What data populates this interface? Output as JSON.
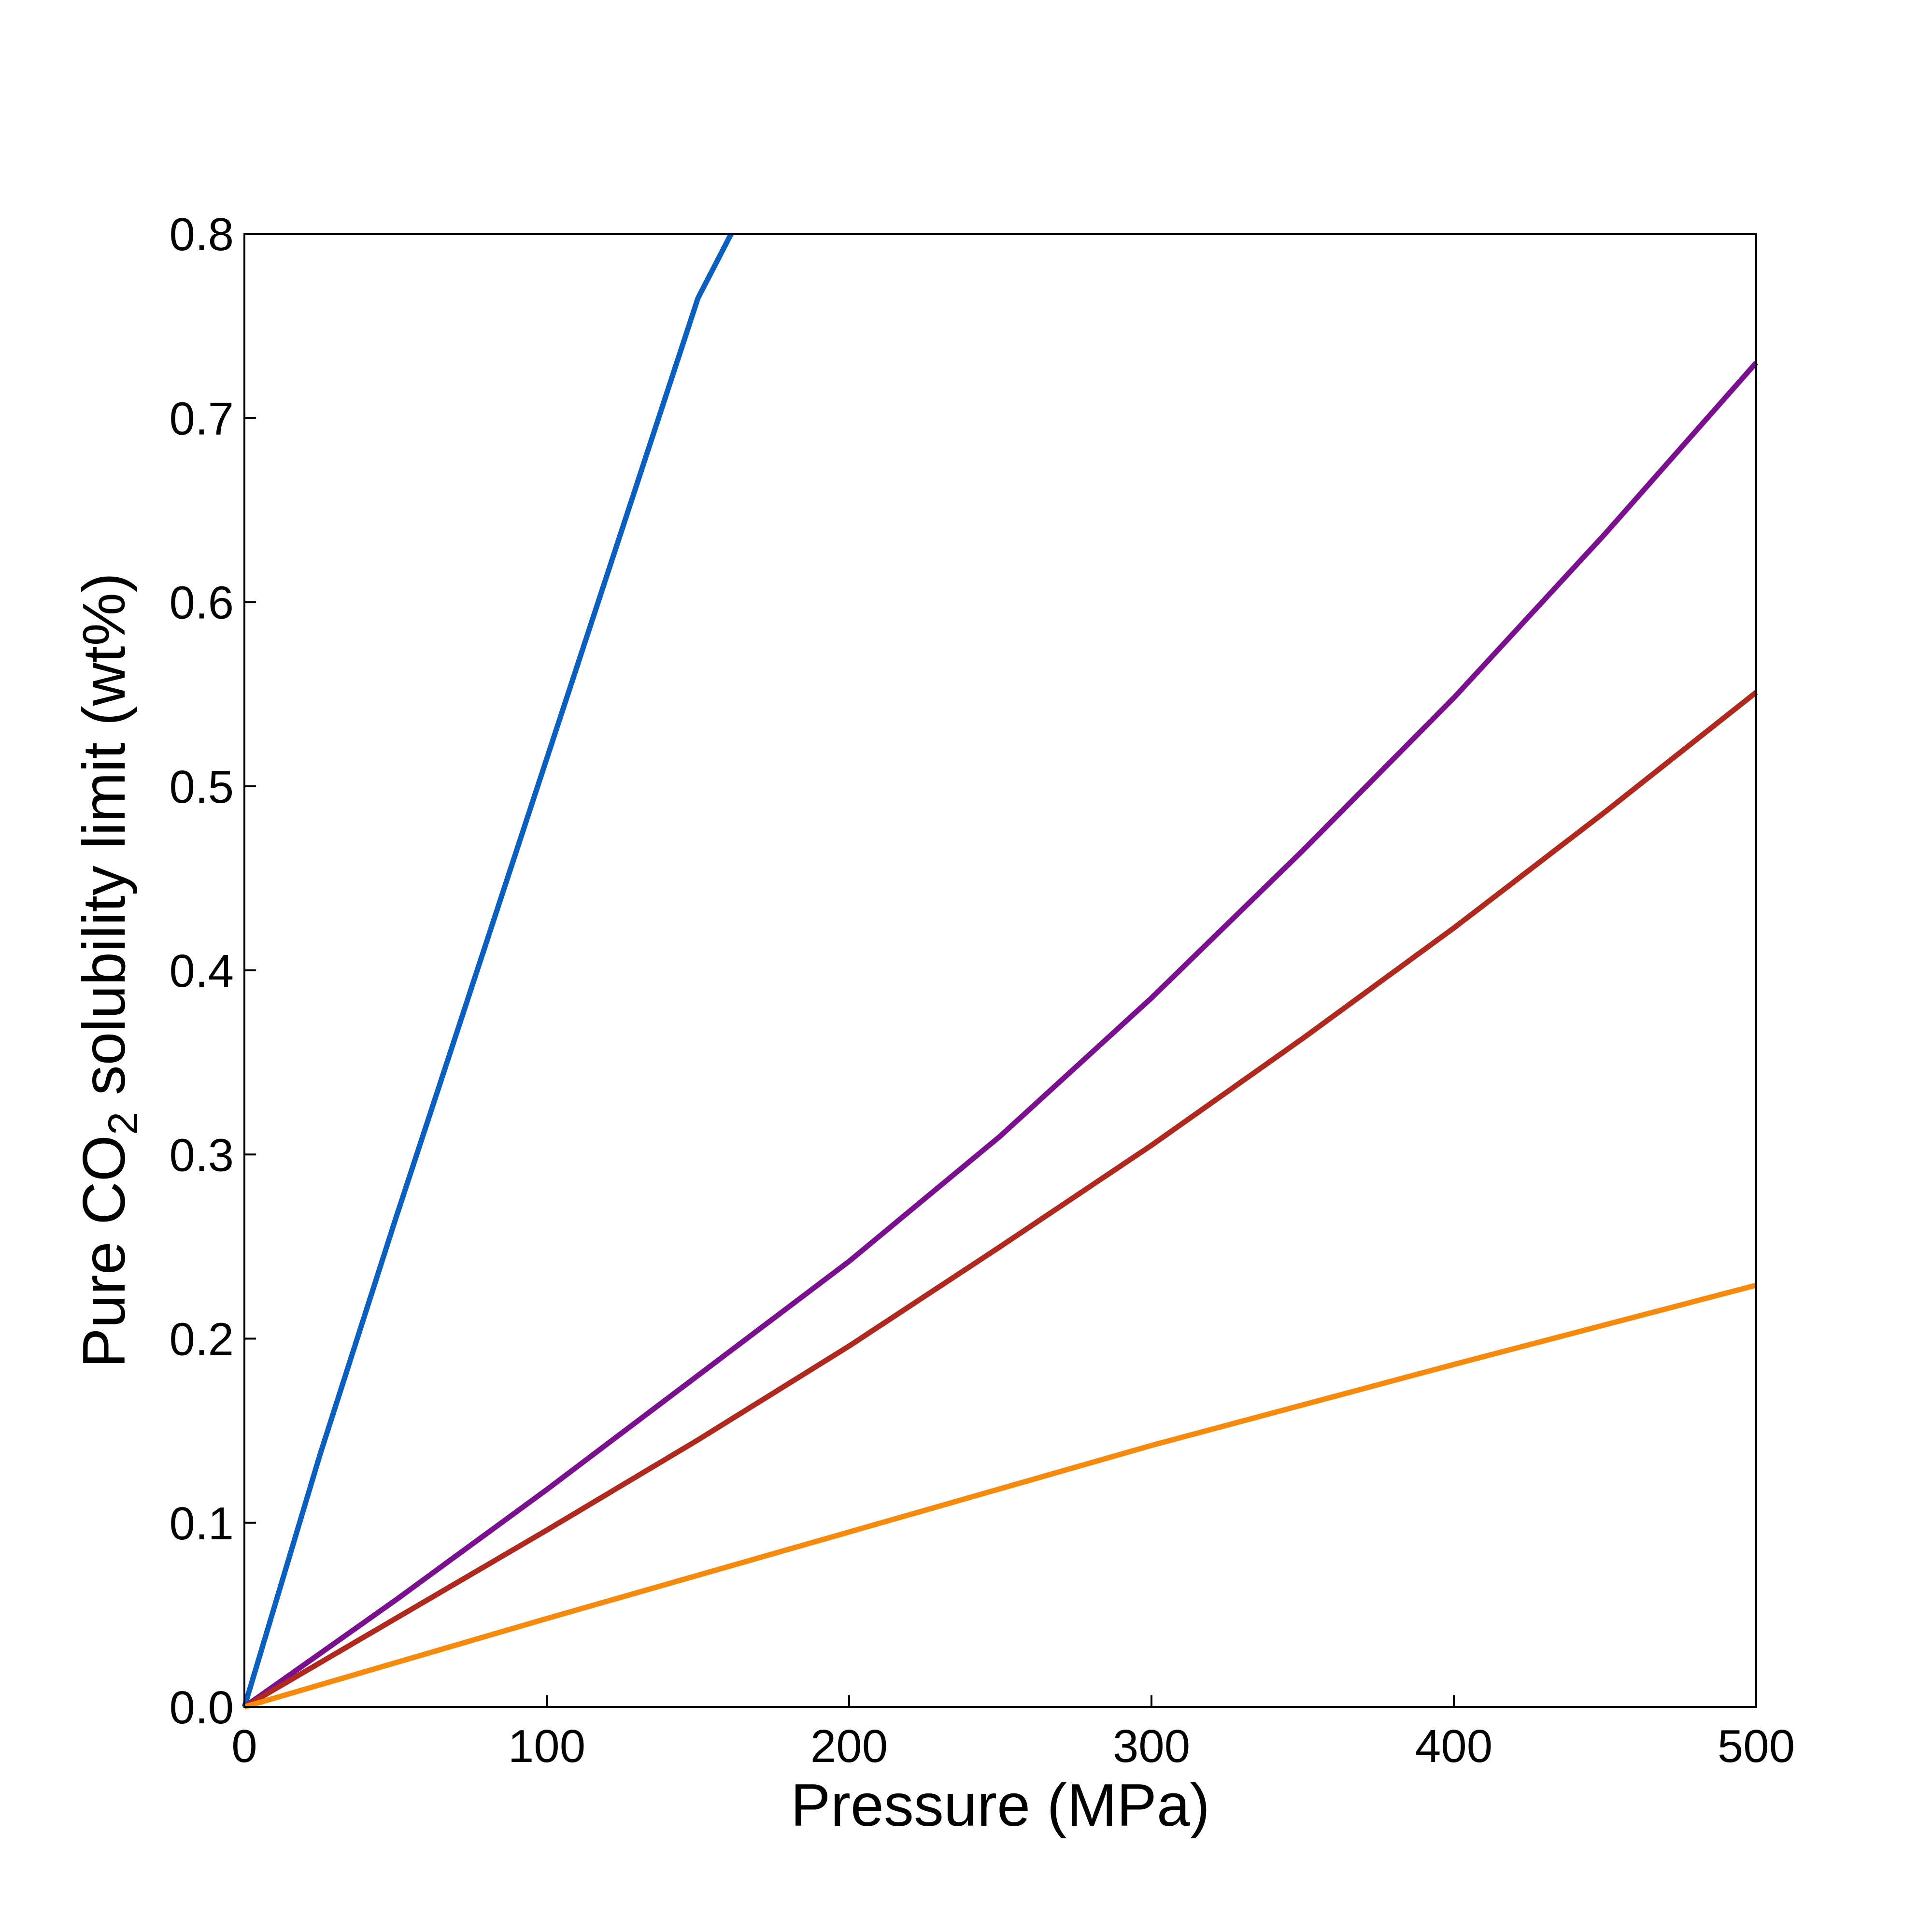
{
  "chart_data": {
    "type": "line",
    "xlabel": "Pressure (MPa)",
    "ylabel": {
      "prefix": "Pure CO",
      "subscript": "2",
      "suffix": " solubility limit (wt%)"
    },
    "xlim": [
      0,
      500
    ],
    "ylim": [
      0,
      0.8
    ],
    "xticks": [
      {
        "value": 0,
        "label": "0"
      },
      {
        "value": 100,
        "label": "100"
      },
      {
        "value": 200,
        "label": "200"
      },
      {
        "value": 300,
        "label": "300"
      },
      {
        "value": 400,
        "label": "400"
      },
      {
        "value": 500,
        "label": "500"
      }
    ],
    "yticks": [
      {
        "value": 0,
        "label": "0.0"
      },
      {
        "value": 0.1,
        "label": "0.1"
      },
      {
        "value": 0.2,
        "label": "0.2"
      },
      {
        "value": 0.3,
        "label": "0.3"
      },
      {
        "value": 0.4,
        "label": "0.4"
      },
      {
        "value": 0.5,
        "label": "0.5"
      },
      {
        "value": 0.6,
        "label": "0.6"
      },
      {
        "value": 0.7,
        "label": "0.7"
      },
      {
        "value": 0.8,
        "label": "0.8"
      }
    ],
    "grid": false,
    "series": [
      {
        "color": "#0A5FC0",
        "x": [
          0,
          25,
          50,
          75,
          100,
          125,
          150,
          161
        ],
        "y": [
          0,
          0.137,
          0.265,
          0.39,
          0.515,
          0.64,
          0.765,
          0.8
        ]
      },
      {
        "color": "#7A0F8F",
        "x": [
          0,
          50,
          100,
          150,
          200,
          250,
          300,
          350,
          400,
          450,
          500
        ],
        "y": [
          0,
          0.058,
          0.118,
          0.18,
          0.242,
          0.31,
          0.385,
          0.465,
          0.548,
          0.637,
          0.73
        ]
      },
      {
        "color": "#B0281E",
        "x": [
          0,
          50,
          100,
          150,
          200,
          250,
          300,
          350,
          400,
          450,
          500
        ],
        "y": [
          0,
          0.048,
          0.096,
          0.145,
          0.196,
          0.25,
          0.305,
          0.363,
          0.423,
          0.486,
          0.551
        ]
      },
      {
        "color": "#F7890C",
        "x": [
          0,
          100,
          200,
          300,
          400,
          500
        ],
        "y": [
          0,
          0.048,
          0.095,
          0.142,
          0.186,
          0.229
        ]
      }
    ]
  }
}
